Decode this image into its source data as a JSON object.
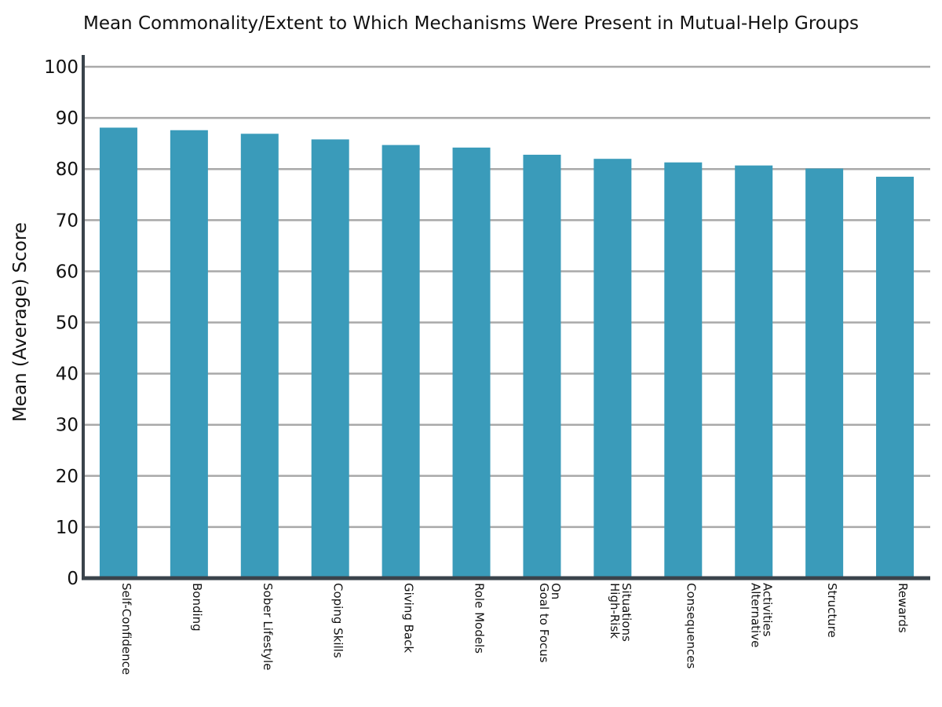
{
  "chart_data": {
    "type": "bar",
    "title": "Mean Commonality/Extent to Which Mechanisms Were Present in Mutual-Help Groups",
    "xlabel": "",
    "ylabel": "Mean (Average) Score",
    "ylim": [
      0,
      100
    ],
    "yticks": [
      0,
      10,
      20,
      30,
      40,
      50,
      60,
      70,
      80,
      90,
      100
    ],
    "grid": true,
    "categories": [
      [
        "Self-Confidence"
      ],
      [
        "Bonding"
      ],
      [
        "Sober Lifestyle"
      ],
      [
        "Coping Skills"
      ],
      [
        "Giving Back"
      ],
      [
        "Role Models"
      ],
      [
        "Goal to Focus",
        "On"
      ],
      [
        "High-Risk",
        "Situations"
      ],
      [
        "Consequences"
      ],
      [
        "Alternative",
        "Activities"
      ],
      [
        "Structure"
      ],
      [
        "Rewards"
      ]
    ],
    "values": [
      88.1,
      87.6,
      86.9,
      85.8,
      84.7,
      84.2,
      82.8,
      82.0,
      81.3,
      80.7,
      80.1,
      78.5
    ],
    "colors": {
      "bar": "#3a9bba",
      "grid": "#a9a9a9",
      "axis": "#3a434b"
    }
  }
}
